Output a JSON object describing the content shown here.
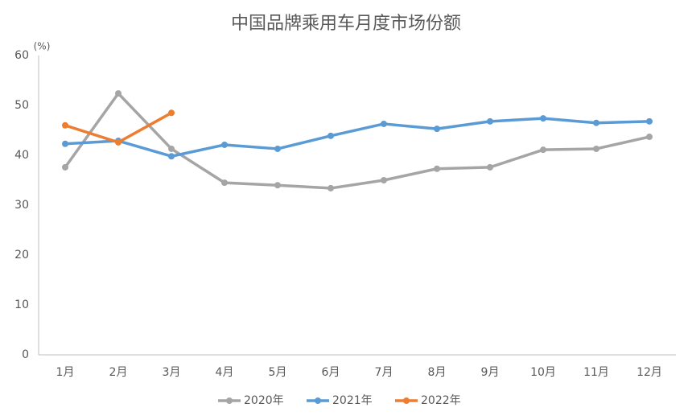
{
  "chart_data": {
    "type": "line",
    "title": "中国品牌乘用车月度市场份额",
    "y_label": "(%)",
    "categories": [
      "1月",
      "2月",
      "3月",
      "4月",
      "5月",
      "6月",
      "7月",
      "8月",
      "9月",
      "10月",
      "11月",
      "12月"
    ],
    "series": [
      {
        "name": "2020年",
        "color": "#a5a5a5",
        "values": [
          37.6,
          52.4,
          41.3,
          34.5,
          34.0,
          33.4,
          35.0,
          37.3,
          37.6,
          41.1,
          41.3,
          43.7
        ]
      },
      {
        "name": "2021年",
        "color": "#5b9bd5",
        "values": [
          42.3,
          42.9,
          39.8,
          42.1,
          41.3,
          43.9,
          46.3,
          45.3,
          46.8,
          47.4,
          46.5,
          46.8
        ]
      },
      {
        "name": "2022年",
        "color": "#ed7d31",
        "values": [
          46.0,
          42.6,
          48.5,
          null,
          null,
          null,
          null,
          null,
          null,
          null,
          null,
          null
        ]
      }
    ],
    "ylim": [
      0,
      60
    ],
    "yticks": [
      0,
      10,
      20,
      30,
      40,
      50,
      60
    ],
    "grid": false,
    "legend": "bottom"
  }
}
